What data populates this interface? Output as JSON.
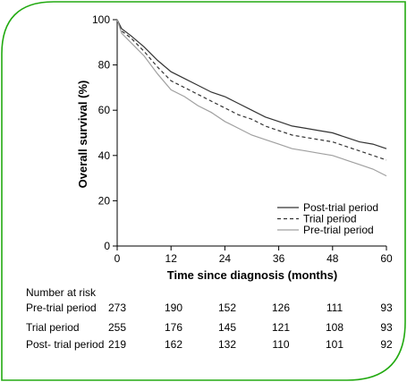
{
  "frame": {
    "border_color": "#22aa11"
  },
  "chart_data": {
    "type": "line",
    "xlabel": "Time since diagnosis (months)",
    "ylabel": "Overall survival (%)",
    "xlim": [
      0,
      60
    ],
    "ylim": [
      0,
      100
    ],
    "xticks": [
      "0",
      "12",
      "24",
      "36",
      "48",
      "60"
    ],
    "yticks": [
      "0",
      "20",
      "40",
      "60",
      "80",
      "100"
    ],
    "legend_position": "bottom-right",
    "series": [
      {
        "name": "Post-trial period",
        "color": "#333333",
        "dash": "solid",
        "points": [
          [
            0,
            100
          ],
          [
            1,
            96
          ],
          [
            3,
            93
          ],
          [
            6,
            88
          ],
          [
            9,
            82
          ],
          [
            12,
            77
          ],
          [
            15,
            74
          ],
          [
            18,
            71
          ],
          [
            21,
            68
          ],
          [
            24,
            66
          ],
          [
            27,
            63
          ],
          [
            30,
            60
          ],
          [
            33,
            57
          ],
          [
            36,
            55
          ],
          [
            39,
            53
          ],
          [
            42,
            52
          ],
          [
            45,
            51
          ],
          [
            48,
            50
          ],
          [
            51,
            48
          ],
          [
            54,
            46
          ],
          [
            57,
            45
          ],
          [
            60,
            43
          ]
        ]
      },
      {
        "name": "Trial period",
        "color": "#333333",
        "dash": "dashed",
        "points": [
          [
            0,
            100
          ],
          [
            1,
            95
          ],
          [
            3,
            92
          ],
          [
            6,
            86
          ],
          [
            9,
            79
          ],
          [
            12,
            73
          ],
          [
            15,
            70
          ],
          [
            18,
            67
          ],
          [
            21,
            64
          ],
          [
            24,
            61
          ],
          [
            27,
            58
          ],
          [
            30,
            56
          ],
          [
            33,
            53
          ],
          [
            36,
            51
          ],
          [
            39,
            49
          ],
          [
            42,
            48
          ],
          [
            45,
            47
          ],
          [
            48,
            46
          ],
          [
            51,
            44
          ],
          [
            54,
            42
          ],
          [
            57,
            40
          ],
          [
            60,
            38
          ]
        ]
      },
      {
        "name": "Pre-trial period",
        "color": "#a0a0a0",
        "dash": "solid",
        "points": [
          [
            0,
            100
          ],
          [
            1,
            94
          ],
          [
            3,
            90
          ],
          [
            6,
            84
          ],
          [
            9,
            76
          ],
          [
            12,
            69
          ],
          [
            15,
            66
          ],
          [
            18,
            62
          ],
          [
            21,
            59
          ],
          [
            24,
            55
          ],
          [
            27,
            52
          ],
          [
            30,
            49
          ],
          [
            33,
            47
          ],
          [
            36,
            45
          ],
          [
            39,
            43
          ],
          [
            42,
            42
          ],
          [
            45,
            41
          ],
          [
            48,
            40
          ],
          [
            51,
            38
          ],
          [
            54,
            36
          ],
          [
            57,
            34
          ],
          [
            60,
            31
          ]
        ]
      }
    ]
  },
  "risk_table": {
    "title": "Number at risk",
    "rows": [
      {
        "label": "Pre-trial period",
        "values": [
          "273",
          "190",
          "152",
          "126",
          "111",
          "93"
        ]
      },
      {
        "label": "Trial period",
        "values": [
          "255",
          "176",
          "145",
          "121",
          "108",
          "93"
        ]
      },
      {
        "label": "Post- trial period",
        "values": [
          "219",
          "162",
          "132",
          "110",
          "101",
          "92"
        ]
      }
    ]
  }
}
